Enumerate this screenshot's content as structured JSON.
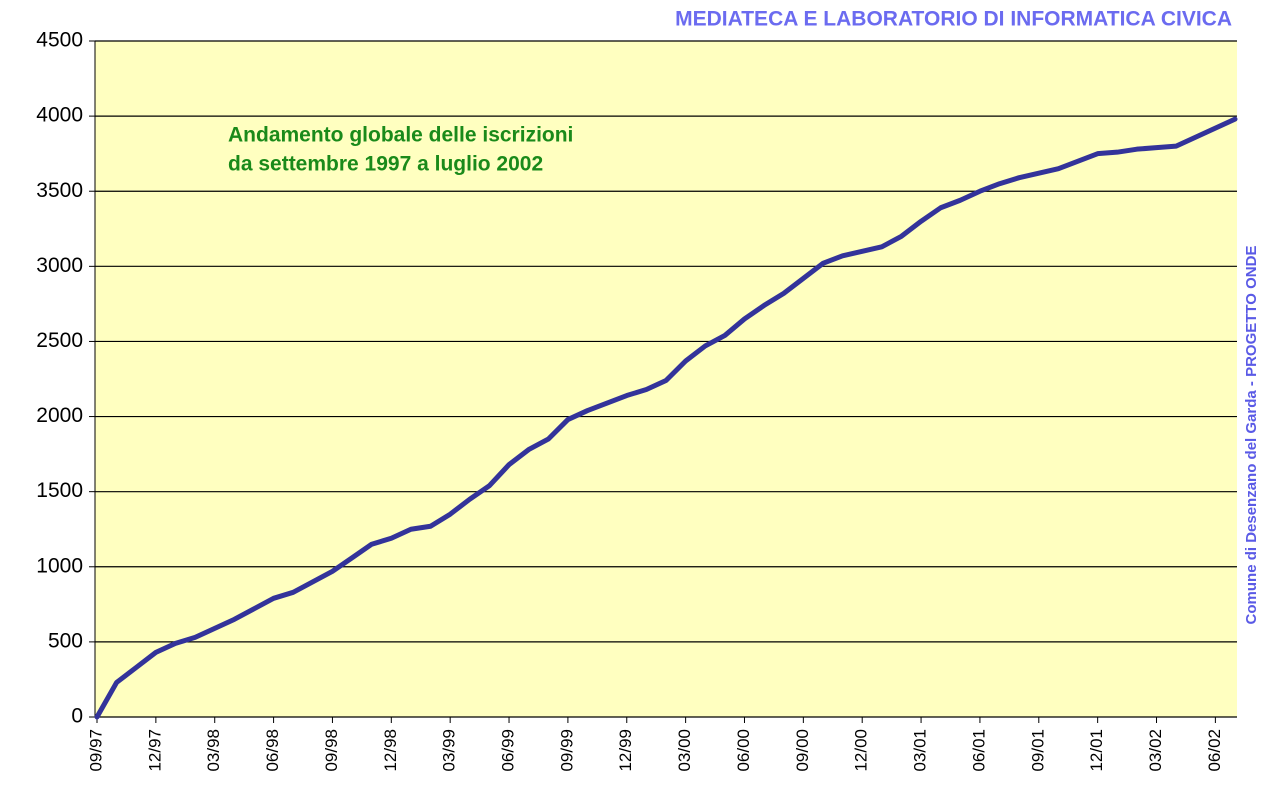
{
  "chart_data": {
    "type": "line",
    "title": "MEDIATECA E LABORATORIO DI INFORMATICA CIVICA",
    "side_title": "Comune di Desenzano del Garda - PROGETTO ONDE",
    "annotation": [
      "Andamento globale delle iscrizioni",
      "da settembre 1997 a luglio 2002"
    ],
    "categories": [
      "09/97",
      null,
      null,
      "12/97",
      null,
      null,
      "03/98",
      null,
      null,
      "06/98",
      null,
      null,
      "09/98",
      null,
      null,
      "12/98",
      null,
      null,
      "03/99",
      null,
      null,
      "06/99",
      null,
      null,
      "09/99",
      null,
      null,
      "12/99",
      null,
      null,
      "03/00",
      null,
      null,
      "06/00",
      null,
      null,
      "09/00",
      null,
      null,
      "12/00",
      null,
      null,
      "03/01",
      null,
      null,
      "06/01",
      null,
      null,
      "09/01",
      null,
      null,
      "12/01",
      null,
      null,
      "03/02",
      null,
      null,
      "06/02",
      null
    ],
    "series": [
      {
        "name": "Iscrizioni",
        "color": "#33339a",
        "values": [
          0,
          230,
          330,
          430,
          490,
          530,
          590,
          650,
          720,
          790,
          830,
          900,
          970,
          1060,
          1150,
          1190,
          1250,
          1270,
          1350,
          1450,
          1540,
          1680,
          1780,
          1850,
          1980,
          2040,
          2090,
          2140,
          2180,
          2240,
          2370,
          2470,
          2540,
          2650,
          2740,
          2820,
          2920,
          3020,
          3070,
          3100,
          3130,
          3200,
          3300,
          3390,
          3440,
          3500,
          3550,
          3590,
          3620,
          3650,
          3700,
          3750,
          3760,
          3780,
          3790,
          3800,
          3860,
          3920,
          3980
        ]
      }
    ],
    "ylim": [
      0,
      4500
    ],
    "yticks": [
      0,
      500,
      1000,
      1500,
      2000,
      2500,
      3000,
      3500,
      4000,
      4500
    ],
    "grid": true,
    "background": "#ffffc0"
  }
}
